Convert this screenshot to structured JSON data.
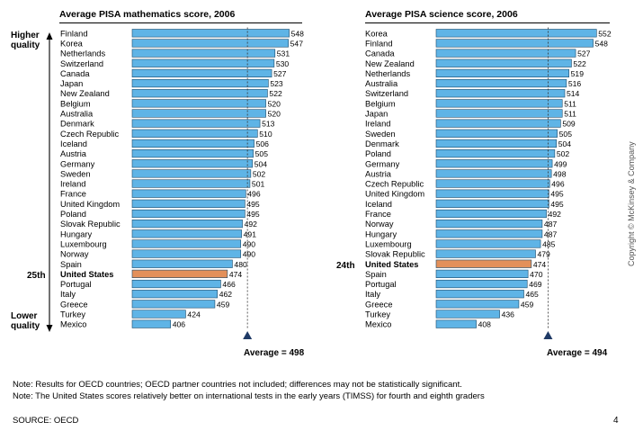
{
  "chart_data": [
    {
      "type": "bar",
      "orientation": "horizontal",
      "title": "Average PISA mathematics score, 2006",
      "categories": [
        "Finland",
        "Korea",
        "Netherlands",
        "Switzerland",
        "Canada",
        "Japan",
        "New Zealand",
        "Belgium",
        "Australia",
        "Denmark",
        "Czech Republic",
        "Iceland",
        "Austria",
        "Germany",
        "Sweden",
        "Ireland",
        "France",
        "United Kingdom",
        "Poland",
        "Slovak Republic",
        "Hungary",
        "Luxembourg",
        "Norway",
        "Spain",
        "United States",
        "Portugal",
        "Italy",
        "Greece",
        "Turkey",
        "Mexico"
      ],
      "values": [
        548,
        547,
        531,
        530,
        527,
        523,
        522,
        520,
        520,
        513,
        510,
        506,
        505,
        504,
        502,
        501,
        496,
        495,
        495,
        492,
        491,
        490,
        490,
        480,
        474,
        466,
        462,
        459,
        424,
        406
      ],
      "highlight": "United States",
      "average": 498,
      "average_label": "Average = 498",
      "ylim": [
        360,
        560
      ]
    },
    {
      "type": "bar",
      "orientation": "horizontal",
      "title": "Average PISA science score, 2006",
      "categories": [
        "Korea",
        "Finland",
        "Canada",
        "New Zealand",
        "Netherlands",
        "Australia",
        "Switzerland",
        "Belgium",
        "Japan",
        "Ireland",
        "Sweden",
        "Denmark",
        "Poland",
        "Germany",
        "Austria",
        "Czech Republic",
        "United Kingdom",
        "Iceland",
        "France",
        "Norway",
        "Hungary",
        "Luxembourg",
        "Slovak Republic",
        "United States",
        "Spain",
        "Portugal",
        "Italy",
        "Greece",
        "Turkey",
        "Mexico"
      ],
      "values": [
        552,
        548,
        527,
        522,
        519,
        516,
        514,
        511,
        511,
        509,
        505,
        504,
        502,
        499,
        498,
        496,
        495,
        495,
        492,
        487,
        487,
        485,
        479,
        474,
        470,
        469,
        465,
        459,
        436,
        408
      ],
      "highlight": "United States",
      "average": 494,
      "average_label": "Average = 494",
      "ylim": [
        360,
        560
      ]
    }
  ],
  "left_axis": {
    "higher_label": "Higher",
    "higher_label2": "quality",
    "lower_label": "Lower",
    "lower_label2": "quality",
    "math_rank": "25th",
    "science_rank": "24th"
  },
  "notes": {
    "note1": "Note: Results for OECD countries; OECD partner countries not included; differences may not be statistically significant.",
    "note2": "Note: The United States scores relatively better on international tests in the early years (TIMSS) for fourth and eighth graders",
    "source": "SOURCE: OECD",
    "page_number": "4",
    "copyright": "Copyright © McKinsey & Company"
  },
  "colors": {
    "bar": "#5fb4e6",
    "bar_edge": "#1a4a6b",
    "highlight": "#e3905a",
    "marker": "#1f3a66"
  }
}
